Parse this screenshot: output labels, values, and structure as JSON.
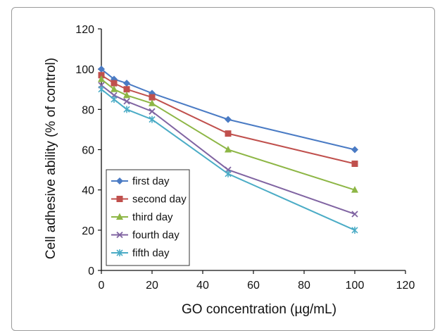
{
  "chart_data": {
    "type": "line",
    "xlabel": "GO concentration (µg/mL)",
    "ylabel": "Cell adhesive ability (% of control)",
    "xlim": [
      0,
      120
    ],
    "ylim": [
      0,
      120
    ],
    "xticks": [
      0,
      20,
      40,
      60,
      80,
      100,
      120
    ],
    "yticks": [
      0,
      20,
      40,
      60,
      80,
      100,
      120
    ],
    "x": [
      0,
      5,
      10,
      20,
      50,
      100
    ],
    "grid": false,
    "legend_position": "bottom-left",
    "series": [
      {
        "name": "first day",
        "color": "#4a7bc4",
        "marker": "diamond",
        "values": [
          100,
          95,
          93,
          88,
          75,
          60
        ]
      },
      {
        "name": "second day",
        "color": "#c0504d",
        "marker": "square",
        "values": [
          97,
          93,
          90,
          86,
          68,
          53
        ]
      },
      {
        "name": "third day",
        "color": "#8db645",
        "marker": "triangle",
        "values": [
          95,
          90,
          87,
          83,
          60,
          40
        ]
      },
      {
        "name": "fourth day",
        "color": "#8064a2",
        "marker": "x",
        "values": [
          92,
          87,
          84,
          79,
          50,
          28
        ]
      },
      {
        "name": "fifth day",
        "color": "#4bacc6",
        "marker": "star",
        "values": [
          90,
          85,
          80,
          75,
          48,
          20
        ]
      }
    ]
  }
}
